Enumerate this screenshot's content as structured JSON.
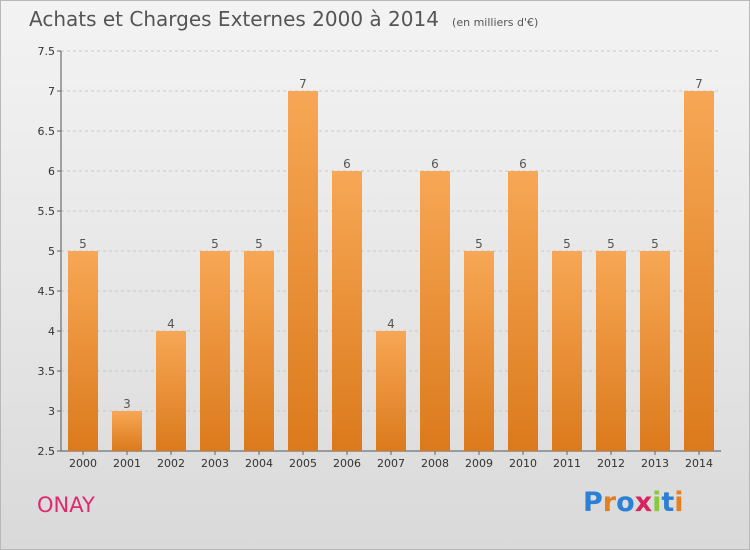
{
  "header": {
    "title": "Achats et Charges Externes 2000 à 2014",
    "subtitle": "(en milliers d'€)"
  },
  "footer": {
    "commune": "ONAY",
    "logo_text": "Proxiti"
  },
  "colors": {
    "bar_light": "#f7a755",
    "bar_dark": "#db7a1c",
    "commune": "#e0286c",
    "logo": [
      "#2b7fd4",
      "#e67e22",
      "#2b7fd4",
      "#d6245f",
      "#8dc63f",
      "#2b7fd4",
      "#e67e22"
    ]
  },
  "chart_data": {
    "type": "bar",
    "title": "Achats et Charges Externes 2000 à 2014",
    "subtitle": "(en milliers d'€)",
    "xlabel": "",
    "ylabel": "",
    "categories": [
      "2000",
      "2001",
      "2002",
      "2003",
      "2004",
      "2005",
      "2006",
      "2007",
      "2008",
      "2009",
      "2010",
      "2011",
      "2012",
      "2013",
      "2014"
    ],
    "values": [
      5,
      3,
      4,
      5,
      5,
      7,
      6,
      4,
      6,
      5,
      6,
      5,
      5,
      5,
      7
    ],
    "ylim": [
      2.5,
      7.5
    ],
    "yticks": [
      "2.5",
      "3",
      "3.5",
      "4",
      "4.5",
      "5",
      "5.5",
      "6",
      "6.5",
      "7",
      "7.5"
    ],
    "grid": "horizontal dashed",
    "legend": "none"
  }
}
